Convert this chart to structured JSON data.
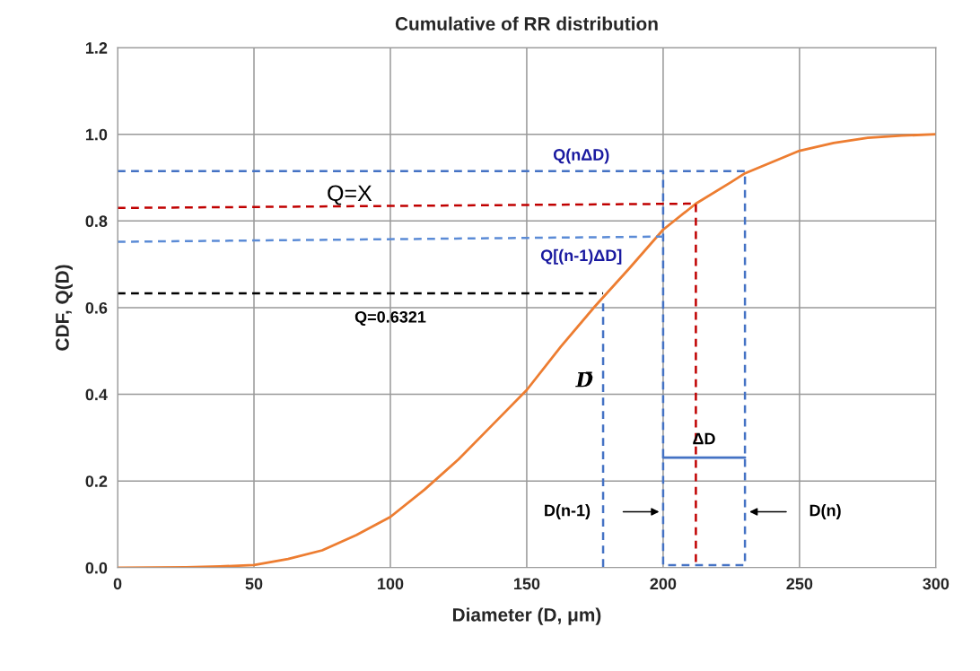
{
  "chart_data": {
    "type": "line",
    "title": "Cumulative of RR distribution",
    "xlabel": "Diameter (D, μm)",
    "ylabel": "CDF, Q(D)",
    "xlim": [
      0,
      300
    ],
    "xticks": [
      0,
      50,
      100,
      150,
      200,
      250,
      300
    ],
    "ylim": [
      0,
      1.2
    ],
    "yticks": [
      {
        "value": 0,
        "label": "0.0"
      },
      {
        "value": 0.2,
        "label": "0.2"
      },
      {
        "value": 0.4,
        "label": "0.4"
      },
      {
        "value": 0.6,
        "label": "0.6"
      },
      {
        "value": 0.8,
        "label": "0.8"
      },
      {
        "value": 1.0,
        "label": "1.0"
      },
      {
        "value": 1.2,
        "label": "1.2"
      }
    ],
    "grid": true,
    "marker": "none",
    "series": [
      {
        "line_style": "solid",
        "color": "#ed7d31",
        "x": [
          0,
          25,
          37.5,
          50,
          62.5,
          75,
          87.5,
          100,
          112.5,
          125,
          137.5,
          150,
          162.5,
          175,
          187.5,
          200,
          212,
          225,
          230,
          250,
          262.5,
          275,
          287.5,
          300
        ],
        "values": [
          0,
          0.001,
          0.003,
          0.006,
          0.02,
          0.04,
          0.075,
          0.117,
          0.18,
          0.25,
          0.33,
          0.41,
          0.51,
          0.603,
          0.69,
          0.78,
          0.84,
          0.89,
          0.91,
          0.962,
          0.98,
          0.992,
          0.997,
          1.0
        ]
      },
      {
        "line_style": "dashed",
        "color": "#4472c4",
        "x": [
          0,
          230,
          230,
          200,
          200
        ],
        "values": [
          0.915,
          0.915,
          0.006,
          0.006,
          0.915
        ]
      },
      {
        "line_style": "dashed",
        "color": "#c00000",
        "x": [
          0,
          212,
          212
        ],
        "values": [
          0.83,
          0.84,
          0
        ]
      },
      {
        "line_style": "dashed",
        "color": "#5b8bd6",
        "x": [
          0,
          200
        ],
        "values": [
          0.752,
          0.764
        ]
      },
      {
        "line_style": "dashed",
        "color": "#000000",
        "x": [
          0,
          178
        ],
        "values": [
          0.633,
          0.633
        ]
      },
      {
        "line_style": "dashed",
        "color": "#4472c4",
        "x": [
          178,
          178
        ],
        "values": [
          0.61,
          0
        ]
      },
      {
        "line_style": "solid",
        "color": "#4472c4",
        "x": [
          200,
          230
        ],
        "values": [
          0.254,
          0.254
        ]
      }
    ],
    "annotations": [
      {
        "text": "Q(nΔD)",
        "x": 170,
        "y": 0.915
      },
      {
        "text": "Q=X",
        "x": 85,
        "y": 0.83
      },
      {
        "text": "Q[(n-1)ΔD]",
        "x": 170,
        "y": 0.752
      },
      {
        "text": "Q=0.6321",
        "x": 100,
        "y": 0.633
      },
      {
        "text": "D̄",
        "x": 178,
        "y": 0.43
      },
      {
        "text": "ΔD",
        "x": 215,
        "y": 0.254
      },
      "D(n-1)",
      "D(n)"
    ]
  }
}
